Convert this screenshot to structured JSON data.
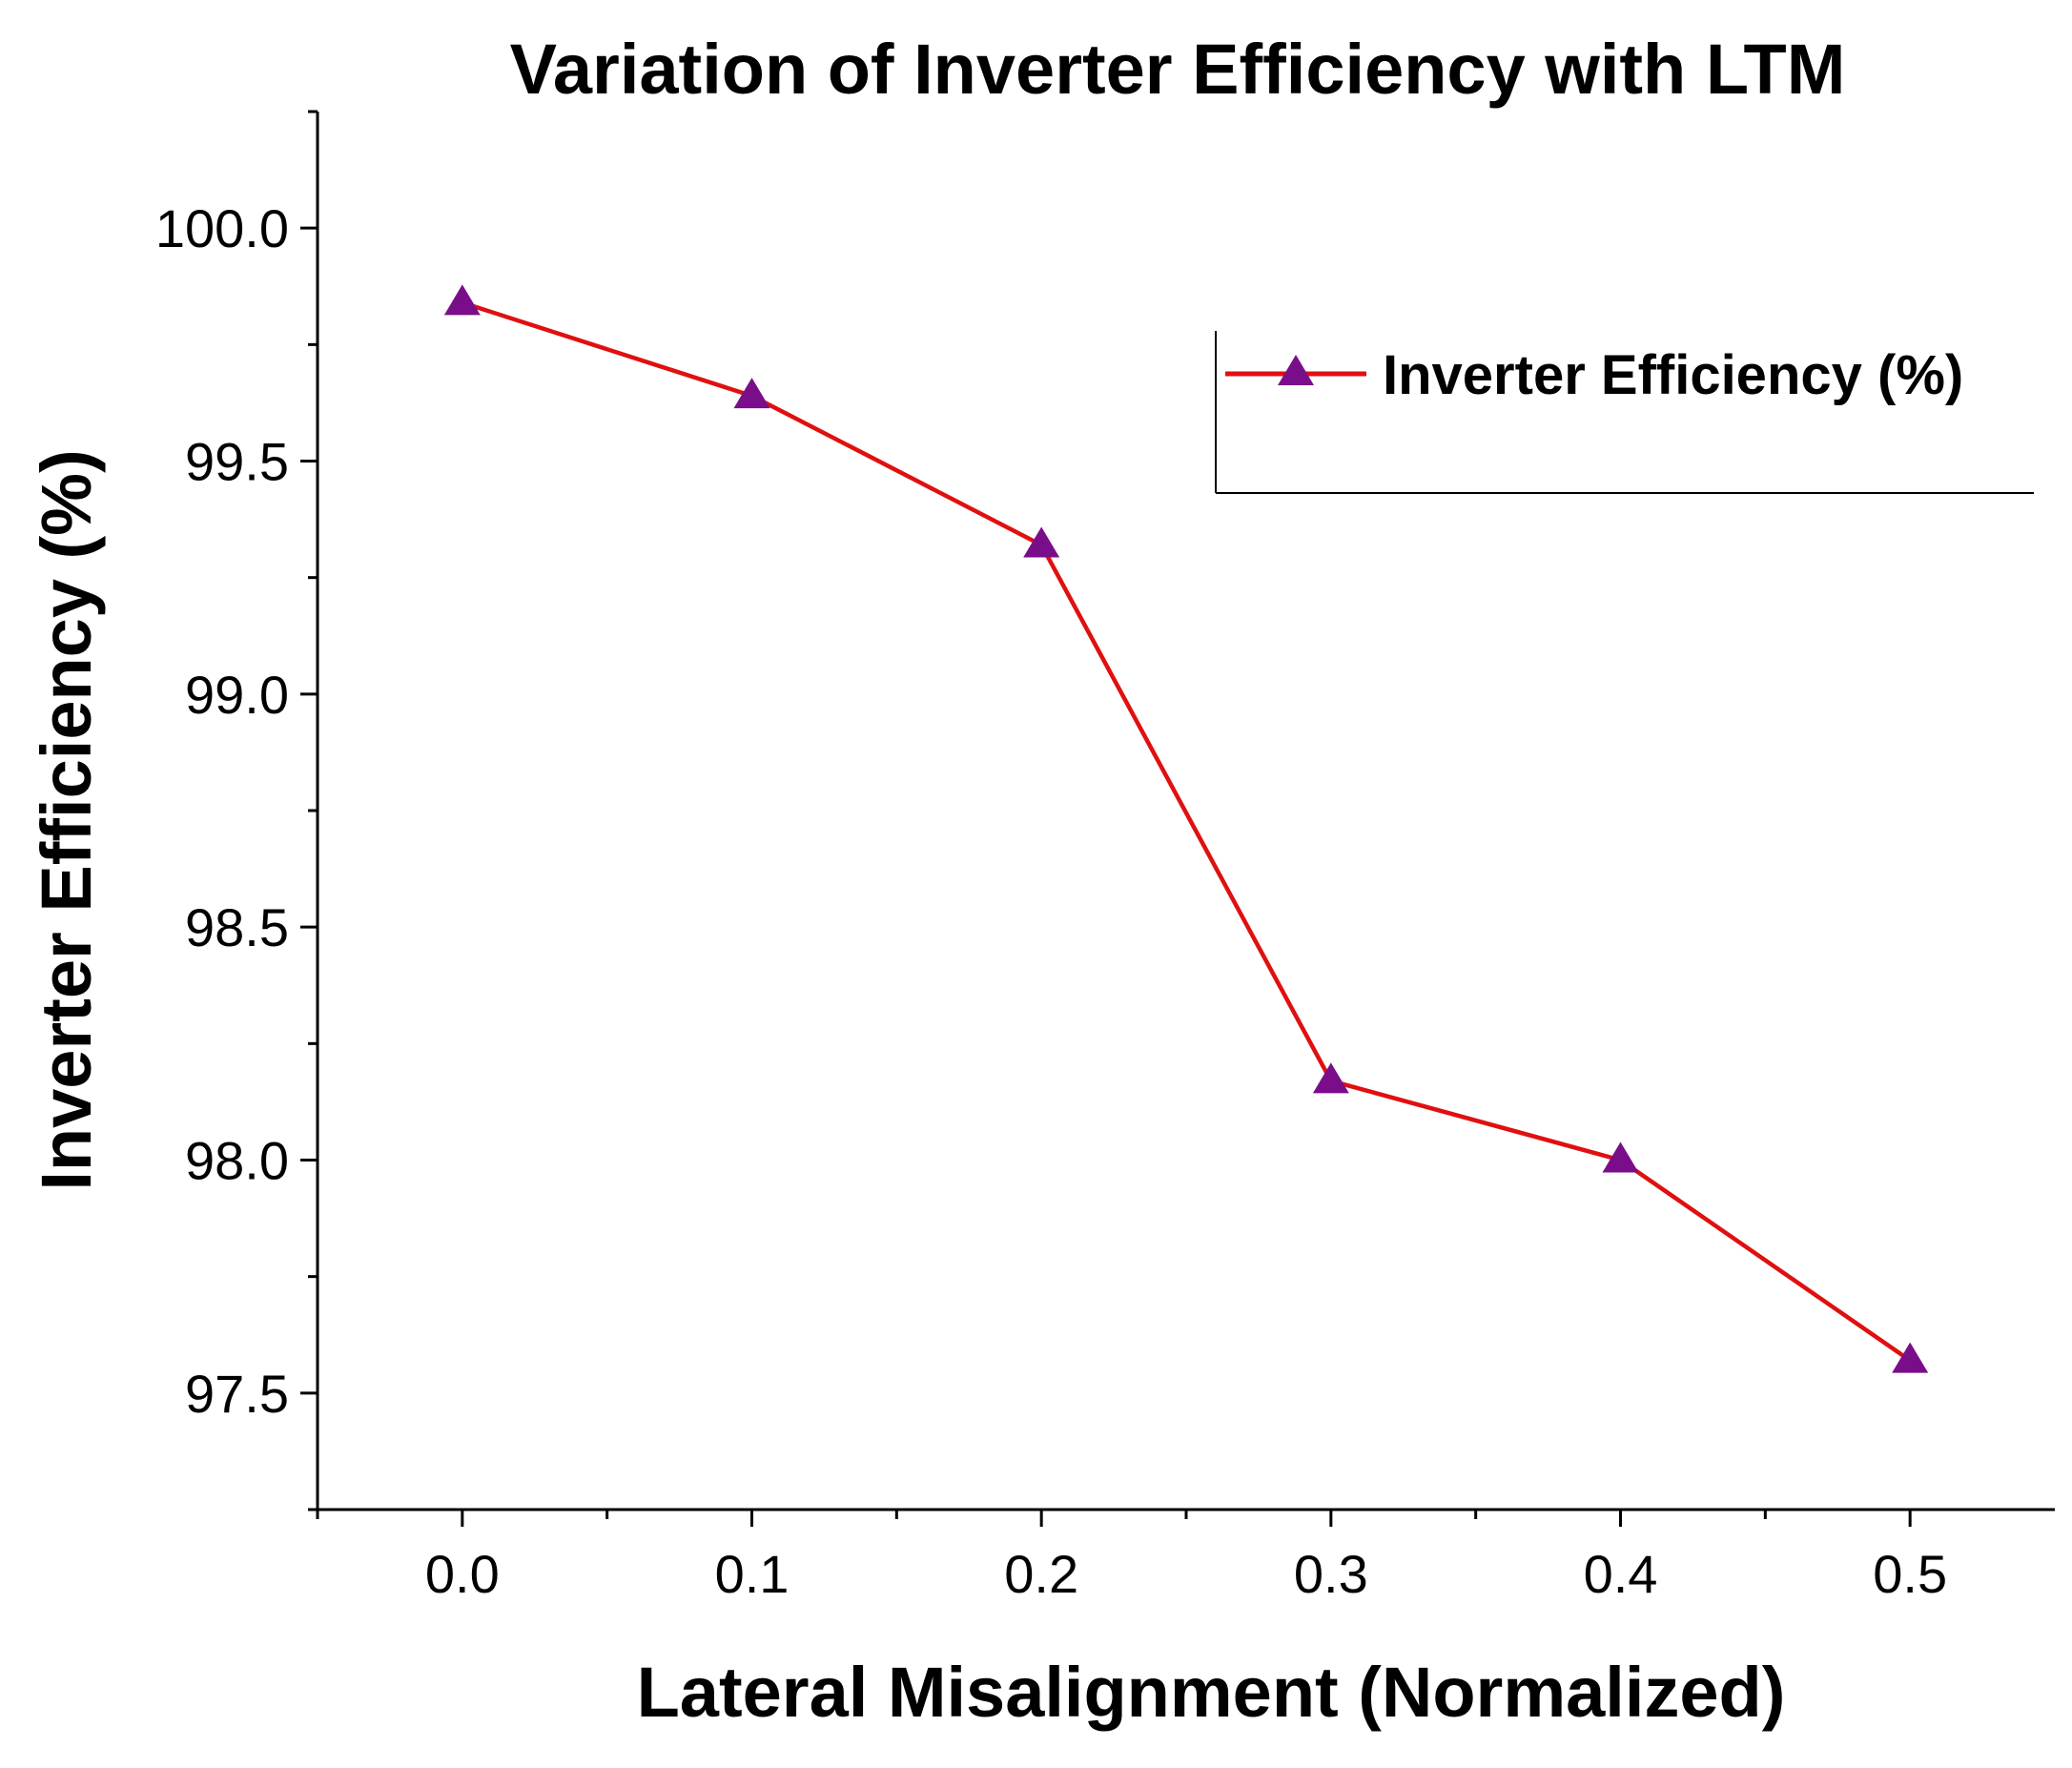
{
  "chart_data": {
    "type": "line",
    "title": "Variation of Inverter Efficiency with LTM",
    "xlabel": "Lateral Misalignment (Normalized)",
    "ylabel": "Inverter Efficiency (%)",
    "x": [
      0.0,
      0.1,
      0.2,
      0.3,
      0.4,
      0.5
    ],
    "series": [
      {
        "name": "Inverter Efficiency (%)",
        "values": [
          99.84,
          99.64,
          99.32,
          98.17,
          98.0,
          97.57
        ],
        "line_color": "#e01010",
        "marker": "triangle",
        "marker_color": "#7a0e8a"
      }
    ],
    "xlim": [
      -0.05,
      0.55
    ],
    "ylim": [
      97.25,
      100.25
    ],
    "x_ticks": [
      "0.0",
      "0.1",
      "0.2",
      "0.3",
      "0.4",
      "0.5"
    ],
    "y_ticks": [
      "97.5",
      "98.0",
      "98.5",
      "99.0",
      "99.5",
      "100.0"
    ],
    "grid": false,
    "legend_position": "top-right"
  }
}
